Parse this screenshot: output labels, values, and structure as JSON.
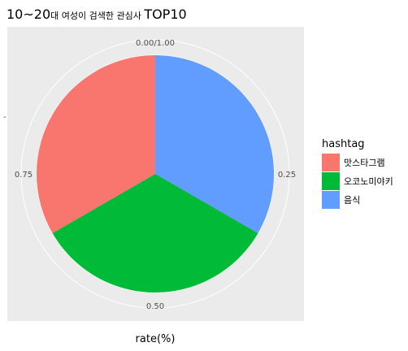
{
  "chart_data": {
    "type": "pie",
    "title": {
      "part1": "10~20",
      "part2": "대 여성이 검색한 관심사 ",
      "part3": "TOP10"
    },
    "xlabel": "rate(%)",
    "ylabel": "",
    "y_tick": "-",
    "theta_ticks": [
      {
        "value": 0,
        "label": "0.00/1.00"
      },
      {
        "value": 0.25,
        "label": "0.25"
      },
      {
        "value": 0.5,
        "label": "0.50"
      },
      {
        "value": 0.75,
        "label": "0.75"
      }
    ],
    "legend": {
      "title": "hashtag",
      "position": "right"
    },
    "slices": [
      {
        "label": "음식",
        "value": 0.3333,
        "color": "#619CFF"
      },
      {
        "label": "오코노미야키",
        "value": 0.3333,
        "color": "#00BA38"
      },
      {
        "label": "맛스타그램",
        "value": 0.3334,
        "color": "#F8766D"
      }
    ],
    "legend_order": [
      "맛스타그램",
      "오코노미야키",
      "음식"
    ],
    "panel_background": "#EBEBEB",
    "grid": true
  }
}
